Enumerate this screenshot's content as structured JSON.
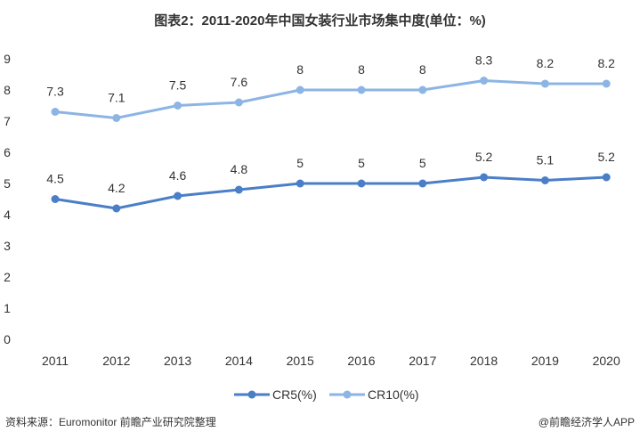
{
  "chart_data": {
    "type": "line",
    "title": "图表2：2011-2020年中国女装行业市场集中度(单位：%)",
    "categories": [
      "2011",
      "2012",
      "2013",
      "2014",
      "2015",
      "2016",
      "2017",
      "2018",
      "2019",
      "2020"
    ],
    "series": [
      {
        "name": "CR5(%)",
        "color": "#4a7fc8",
        "values": [
          4.5,
          4.2,
          4.6,
          4.8,
          5,
          5,
          5,
          5.2,
          5.1,
          5.2
        ],
        "labels": [
          "4.5",
          "4.2",
          "4.6",
          "4.8",
          "5",
          "5",
          "5",
          "5.2",
          "5.1",
          "5.2"
        ]
      },
      {
        "name": "CR10(%)",
        "color": "#8cb4e4",
        "values": [
          7.3,
          7.1,
          7.5,
          7.6,
          8,
          8,
          8,
          8.3,
          8.2,
          8.2
        ],
        "labels": [
          "7.3",
          "7.1",
          "7.5",
          "7.6",
          "8",
          "8",
          "8",
          "8.3",
          "8.2",
          "8.2"
        ]
      }
    ],
    "yticks": [
      "0",
      "1",
      "2",
      "3",
      "4",
      "5",
      "6",
      "7",
      "8",
      "9"
    ],
    "ylim": [
      0,
      9
    ],
    "xlabel": "",
    "ylabel": "",
    "legend": "bottom",
    "grid": false
  },
  "footer": {
    "source": "资料来源：Euromonitor 前瞻产业研究院整理",
    "credit": "@前瞻经济学人APP"
  }
}
